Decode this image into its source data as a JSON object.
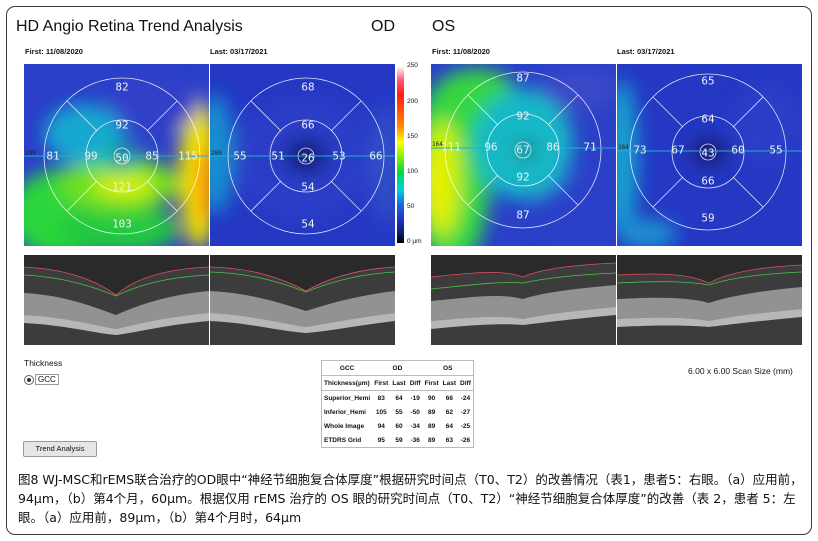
{
  "app_title": "HD Angio Retina Trend Analysis",
  "eye_od": "OD",
  "eye_os": "OS",
  "first_od": "First: 11/08/2020",
  "last_od": "Last:  03/17/2021",
  "first_os": "First: 11/08/2020",
  "last_os": "Last:  03/17/2021",
  "maps": {
    "od_first": {
      "top": "82",
      "upper": "92",
      "left_out": "81",
      "left_in": "99",
      "center": "50",
      "right_in": "85",
      "right_out": "115",
      "lower": "121",
      "bottom": "103",
      "edge": "199"
    },
    "od_last": {
      "top": "68",
      "upper": "66",
      "left_out": "55",
      "left_in": "51",
      "center": "26",
      "right_in": "53",
      "right_out": "66",
      "lower": "54",
      "bottom": "54",
      "edge": "200"
    },
    "os_first": {
      "top": "87",
      "upper": "92",
      "left_out": "111",
      "left_in": "96",
      "center": "67",
      "right_in": "86",
      "right_out": "71",
      "lower": "92",
      "bottom": "87",
      "edge": "164"
    },
    "os_last": {
      "top": "65",
      "upper": "64",
      "left_out": "73",
      "left_in": "67",
      "center": "43",
      "right_in": "60",
      "right_out": "55",
      "lower": "66",
      "bottom": "59",
      "edge": "164"
    }
  },
  "colorbar": {
    "labels": [
      "250",
      "200",
      "150",
      "100",
      "50",
      "0 µm"
    ]
  },
  "thickness_label": "Thickness",
  "gcc_option": "GCC",
  "scan_size": "6.00 x 6.00 Scan Size (mm)",
  "trend_button": "Trend Analysis",
  "table": {
    "title": "GCC",
    "od": "OD",
    "os": "OS",
    "headers": [
      "Thickness(µm)",
      "First",
      "Last",
      "Diff",
      "First",
      "Last",
      "Diff"
    ],
    "rows": [
      {
        "name": "Superior_Hemi",
        "v": [
          "83",
          "64",
          "-19",
          "90",
          "66",
          "-24"
        ]
      },
      {
        "name": "Inferior_Hemi",
        "v": [
          "105",
          "55",
          "-50",
          "89",
          "62",
          "-27"
        ]
      },
      {
        "name": "Whole Image",
        "v": [
          "94",
          "60",
          "-34",
          "89",
          "64",
          "-25"
        ]
      },
      {
        "name": "ETDRS Grid",
        "v": [
          "95",
          "59",
          "-36",
          "89",
          "63",
          "-26"
        ]
      }
    ]
  },
  "caption": "图8 WJ-MSC和rEMS联合治疗的OD眼中“神经节细胞复合体厚度”根据研究时间点（T0、T2）的改善情况（表1，患者5：右眼。（a）应用前，94μm，（b）第4个月，60μm。根据仅用 rEMS 治疗的 OS 眼的研究时间点（T0、T2）“神经节细胞复合体厚度”的改善（表 2，患者 5：左眼。（a）应用前，89μm，（b）第4个月时，64μm"
}
